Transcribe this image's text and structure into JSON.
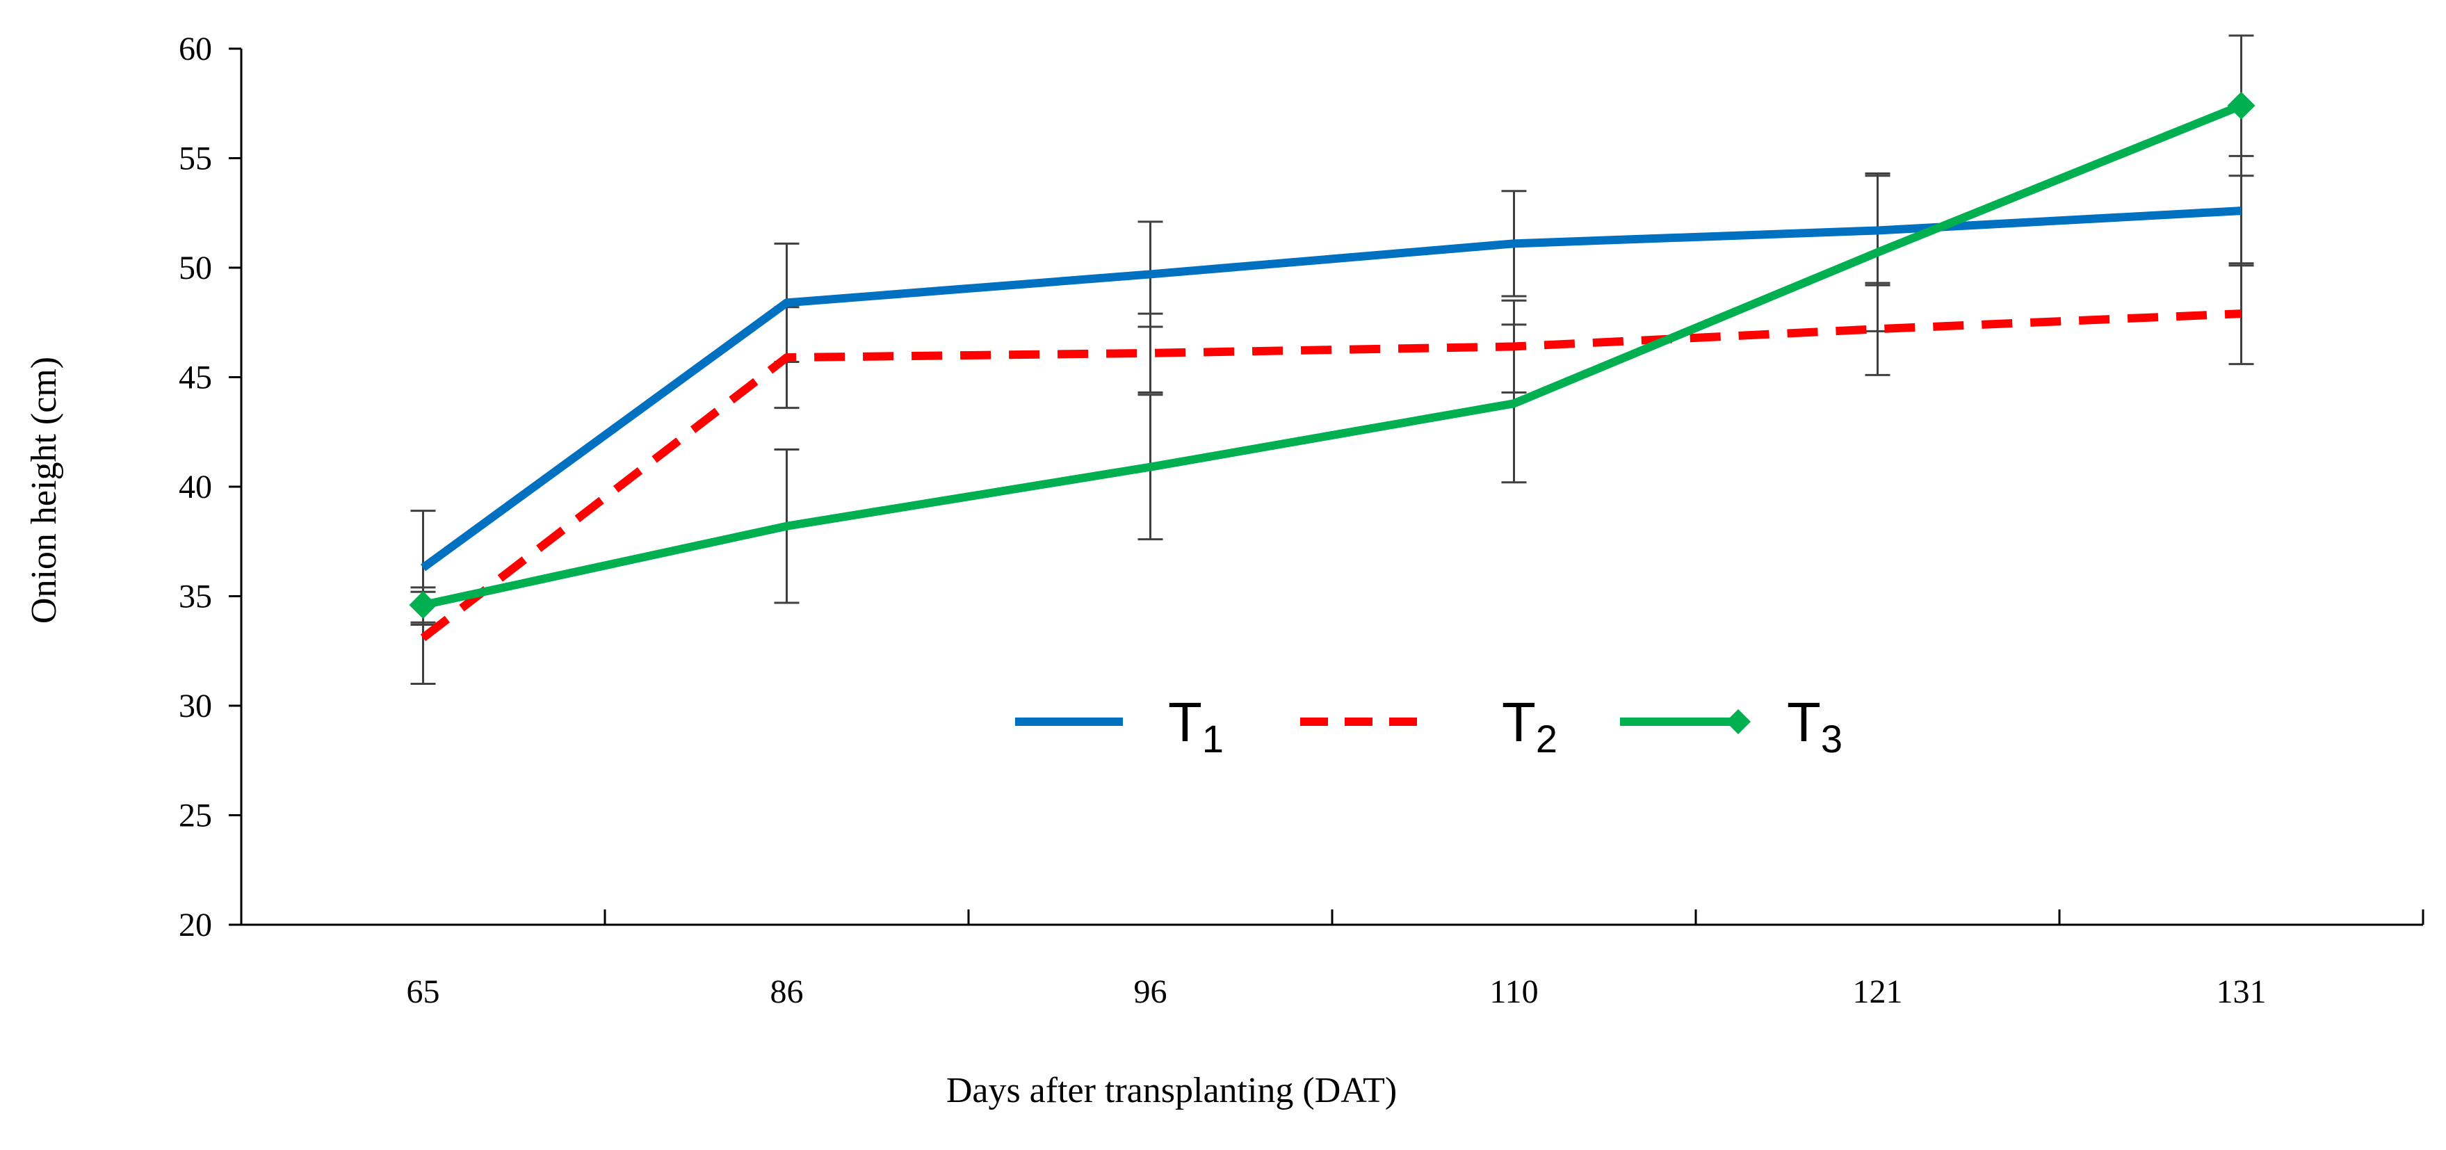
{
  "chart_data": {
    "type": "line",
    "title": "",
    "xlabel": "Days after transplanting (DAT)",
    "ylabel": "Onion height (cm)",
    "categories": [
      "65",
      "86",
      "96",
      "110",
      "121",
      "131"
    ],
    "ylim": [
      20,
      60
    ],
    "yticks": [
      "20",
      "25",
      "30",
      "35",
      "40",
      "45",
      "50",
      "55",
      "60"
    ],
    "grid": false,
    "legend_position": "center",
    "series": [
      {
        "name": "T",
        "subscript": "1",
        "color": "#0070C0",
        "style": "solid",
        "marker": "none",
        "values": [
          36.3,
          48.4,
          49.7,
          51.1,
          51.7,
          52.6
        ],
        "errors": [
          2.6,
          2.7,
          2.4,
          2.4,
          2.5,
          2.5
        ]
      },
      {
        "name": "T",
        "subscript": "2",
        "color": "#FF0000",
        "style": "dashed",
        "marker": "none",
        "values": [
          33.1,
          45.9,
          46.1,
          46.4,
          47.2,
          47.9
        ],
        "errors": [
          2.1,
          2.3,
          1.8,
          2.1,
          2.1,
          2.3
        ]
      },
      {
        "name": "T",
        "subscript": "3",
        "color": "#00B050",
        "style": "solid",
        "marker": "diamond",
        "values": [
          34.6,
          38.2,
          40.9,
          43.8,
          50.7,
          57.4
        ],
        "errors": [
          0.8,
          3.5,
          3.3,
          3.6,
          3.6,
          3.2
        ]
      }
    ]
  }
}
